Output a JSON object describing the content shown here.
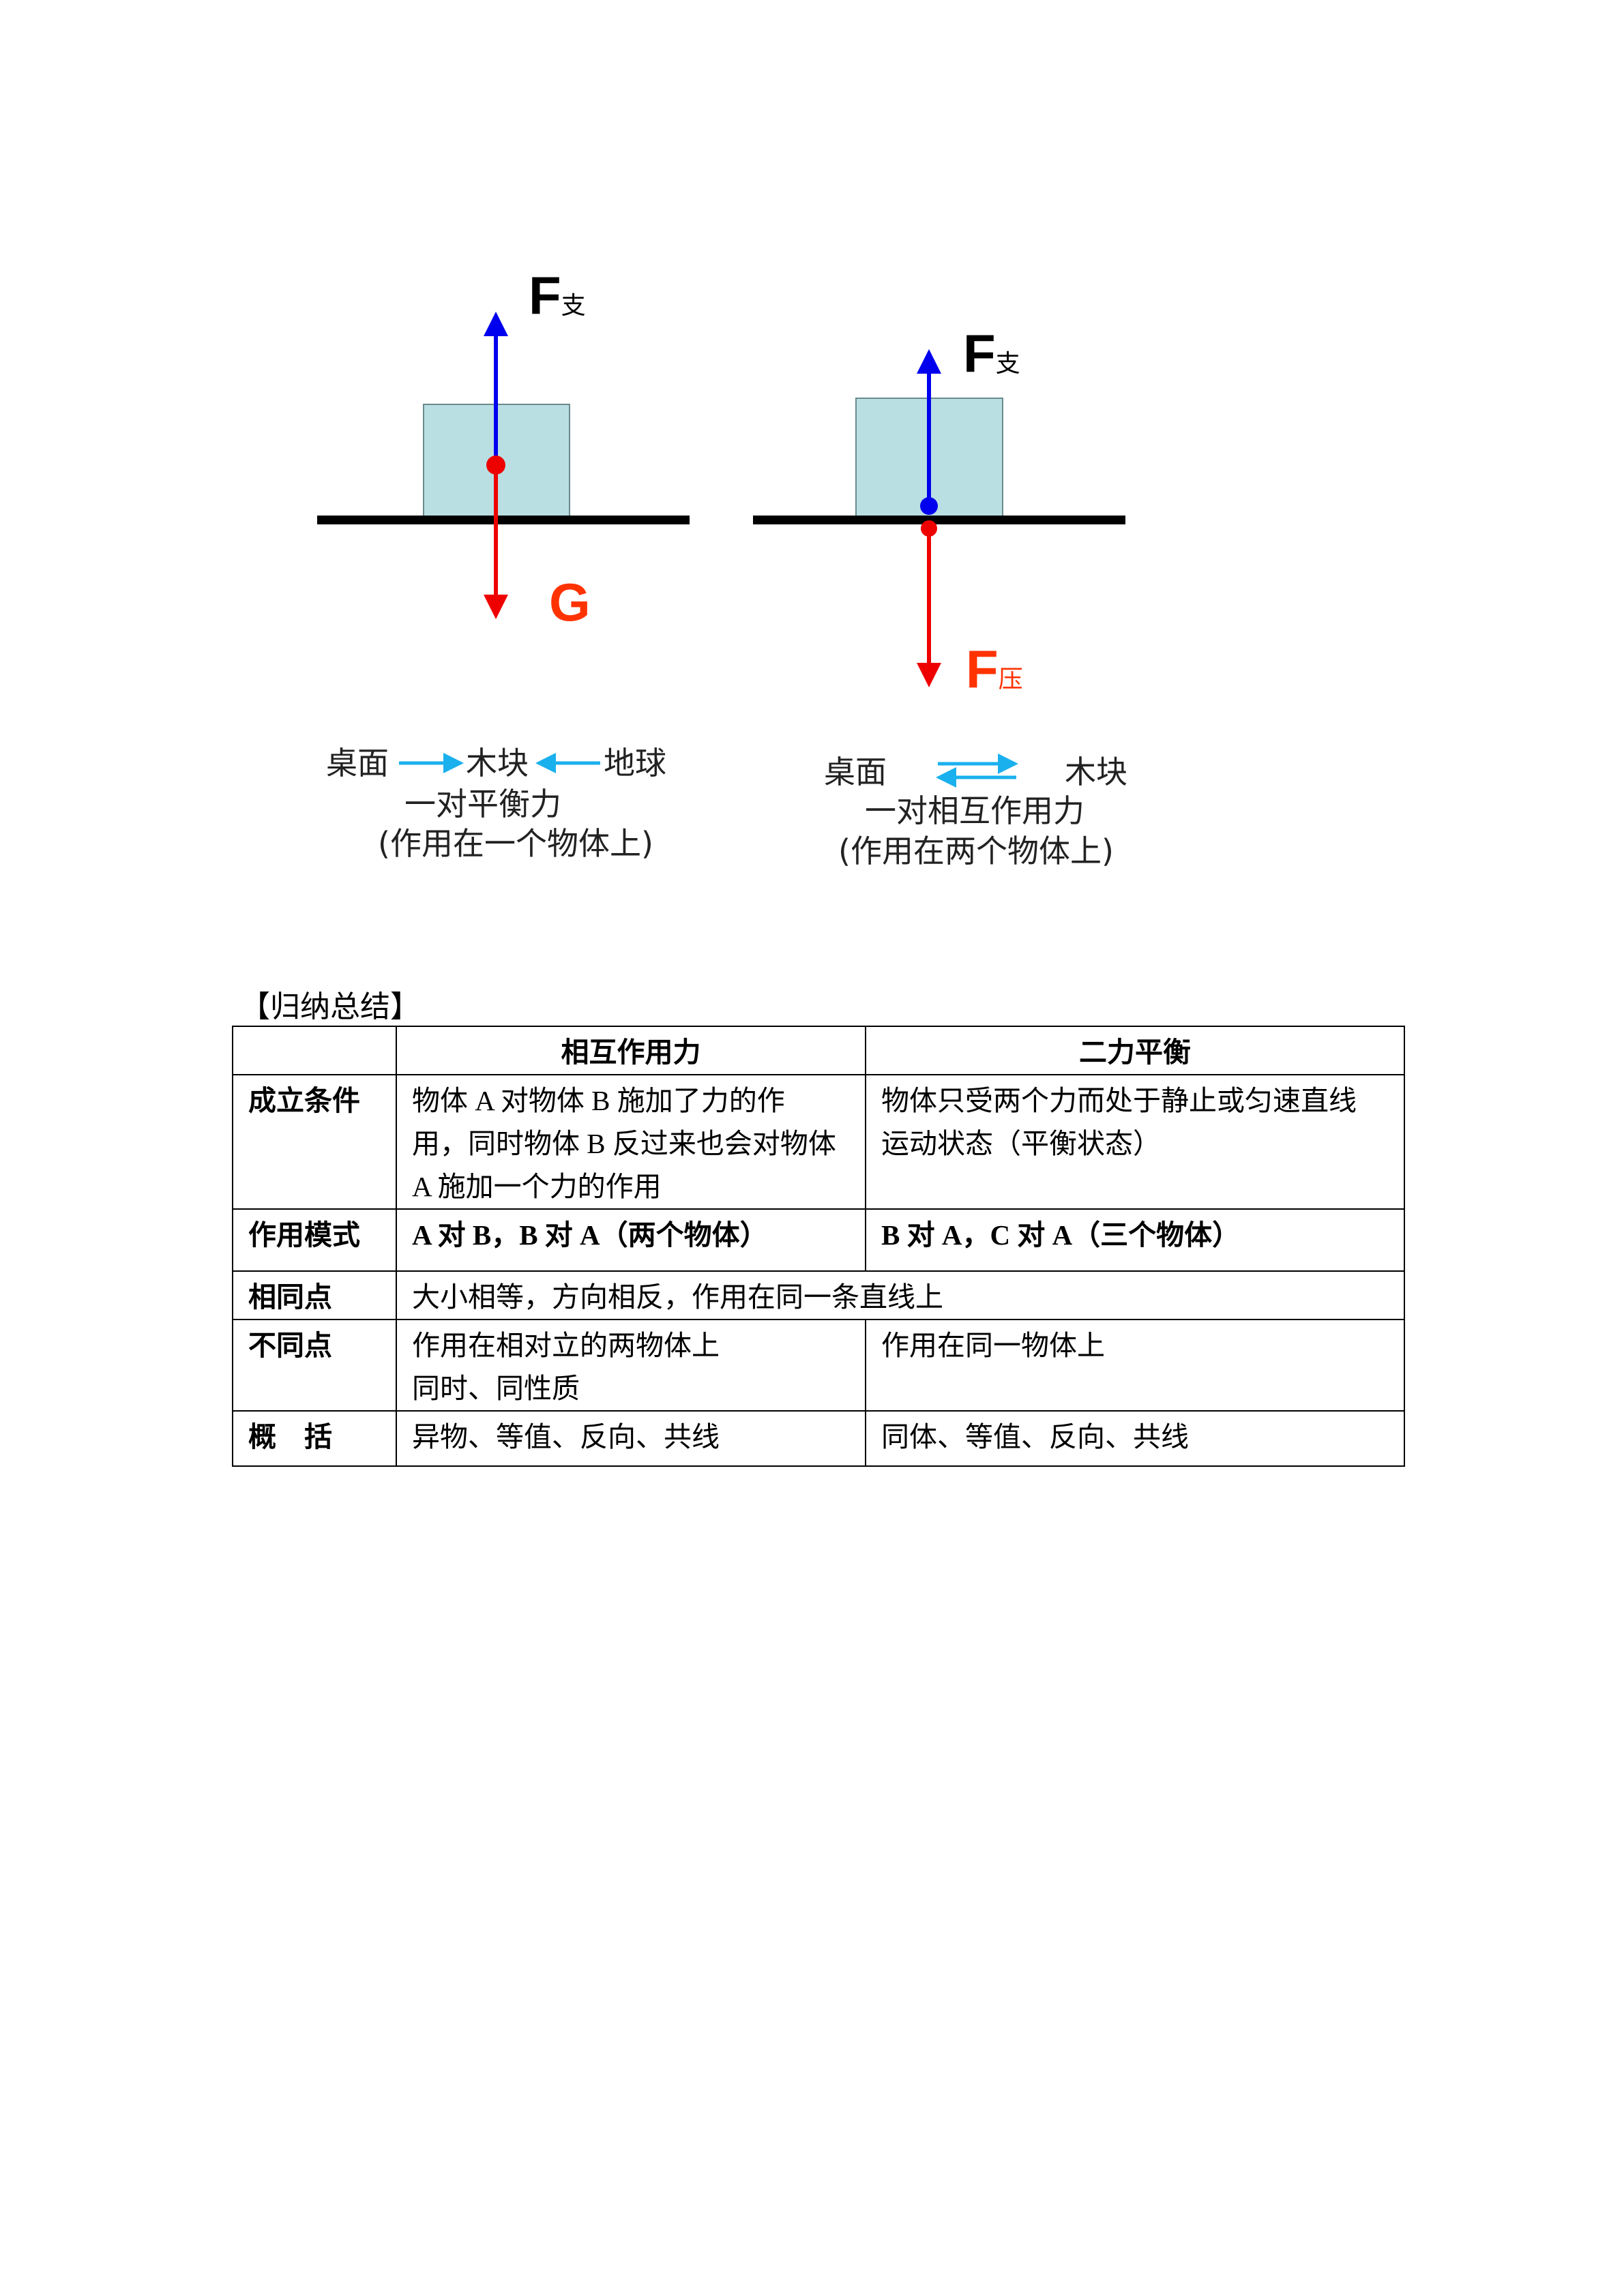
{
  "diagram_left": {
    "force_up_label": "F",
    "force_up_sub": "支",
    "force_down_label": "G",
    "caption_line1": [
      "桌面",
      "木块",
      "地球"
    ],
    "caption_line2": "一对平衡力",
    "caption_line3": "(作用在一个物体上)"
  },
  "diagram_right": {
    "force_up_label": "F",
    "force_up_sub": "支",
    "force_down_label": "F",
    "force_down_sub": "压",
    "caption_line1": [
      "桌面",
      "木块"
    ],
    "caption_line2": "一对相互作用力",
    "caption_line3": "(作用在两个物体上)"
  },
  "colors": {
    "block": "#b9dfe3",
    "up_arrow": "#0000ee",
    "down_arrow": "#ee0000",
    "label_red": "#ff3300",
    "caption_arrow": "#1ab0ee"
  },
  "summary": {
    "title": "【归纳总结】",
    "headers": [
      "",
      "相互作用力",
      "二力平衡"
    ],
    "rows": [
      {
        "label": "成立条件",
        "a": [
          "物体 A 对物体 B 施加了力的作",
          "用，同时物体 B 反过来也会对物体",
          "A 施加一个力的作用"
        ],
        "b": [
          "物体只受两个力而处于静止或匀速直线",
          "运动状态（平衡状态）"
        ]
      },
      {
        "label": "作用模式",
        "a": [
          "A 对 B，B 对 A（两个物体）"
        ],
        "b": [
          "B 对 A，C 对 A（三个物体）"
        ]
      },
      {
        "label": "相同点",
        "merged": "大小相等，方向相反，作用在同一条直线上"
      },
      {
        "label": "不同点",
        "a": [
          "作用在相对立的两物体上",
          "同时、同性质"
        ],
        "b": [
          "作用在同一物体上"
        ]
      },
      {
        "label": "概    括",
        "a": [
          "异物、等值、反向、共线"
        ],
        "b": [
          "同体、等值、反向、共线"
        ]
      }
    ]
  }
}
